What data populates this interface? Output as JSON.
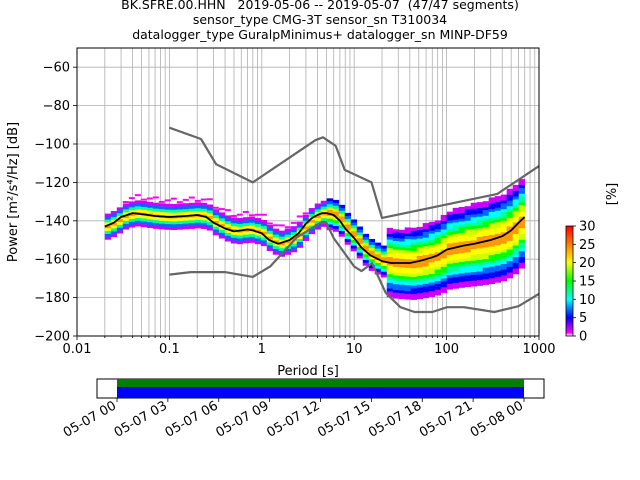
{
  "title_lines": [
    "BK.SFRE.00.HHN   2019-05-06 -- 2019-05-07  (47/47 segments)",
    "sensor_type CMG-3T sensor_sn T310034",
    "datalogger_type GuralpMinimus+ datalogger_sn MINP-DF59"
  ],
  "colors": {
    "model_curves": "#666666",
    "mean_curve": "#000000",
    "grid": "#b0b0b0",
    "timeline_green": "#008000",
    "timeline_blue": "#0000ff"
  },
  "chart_data": [
    {
      "type": "heatmap",
      "subtype": "probabilistic power spectral density",
      "xlabel": "Period [s]",
      "ylabel": "Power [m²/s⁴/Hz] [dB]",
      "xscale": "log",
      "xlim": [
        0.01,
        1000
      ],
      "ylim": [
        -200,
        -50
      ],
      "xticks": [
        0.01,
        0.1,
        1,
        10,
        100,
        1000
      ],
      "xtick_labels": [
        "0.01",
        "0.1",
        "1",
        "10",
        "100",
        "1000"
      ],
      "yticks": [
        -200,
        -180,
        -160,
        -140,
        -120,
        -100,
        -80,
        -60
      ],
      "grid": true,
      "colorbar": {
        "label": "[%]",
        "range": [
          0,
          30
        ],
        "ticks": [
          0,
          5,
          10,
          15,
          20,
          25,
          30
        ]
      },
      "noise_model_high": {
        "period": [
          0.1,
          0.22,
          0.32,
          0.8,
          3.8,
          4.6,
          6.3,
          7.9,
          15.4,
          20,
          354,
          1000
        ],
        "power": [
          -91.5,
          -97.4,
          -110.5,
          -120,
          -98,
          -96.5,
          -101,
          -113.5,
          -120,
          -138.5,
          -126,
          -111.5
        ]
      },
      "noise_model_low": {
        "period": [
          0.1,
          0.17,
          0.4,
          0.8,
          1.24,
          2.4,
          4.3,
          5,
          6,
          10,
          12,
          15.6,
          21.9,
          31.6,
          45,
          70,
          101,
          154,
          328,
          600,
          1000
        ],
        "power": [
          -168,
          -166.7,
          -166.7,
          -169.2,
          -163.7,
          -148.6,
          -141.1,
          -141.1,
          -149,
          -163.8,
          -166.2,
          -162.1,
          -177.5,
          -185,
          -187.5,
          -187.5,
          -185,
          -185,
          -187.5,
          -184.5,
          -178
        ]
      },
      "mean_curve": {
        "period": [
          0.02,
          0.025,
          0.03,
          0.04,
          0.05,
          0.07,
          0.1,
          0.15,
          0.2,
          0.25,
          0.3,
          0.4,
          0.5,
          0.6,
          0.7,
          0.8,
          1,
          1.2,
          1.5,
          2,
          2.5,
          3,
          3.5,
          4,
          4.5,
          5,
          6,
          7,
          8,
          10,
          12,
          15,
          20,
          25,
          30,
          40,
          50,
          60,
          70,
          80,
          100,
          150,
          200,
          300,
          400,
          500,
          600,
          700
        ],
        "power": [
          -143,
          -141,
          -138,
          -136,
          -136.5,
          -137.5,
          -138,
          -137.5,
          -137,
          -138,
          -141,
          -144,
          -145.5,
          -145,
          -144.5,
          -145,
          -146.5,
          -150,
          -152,
          -150,
          -146.5,
          -141.5,
          -138.5,
          -137,
          -136,
          -136,
          -137,
          -140,
          -144,
          -149,
          -154,
          -158,
          -161,
          -162,
          -162,
          -162,
          -161,
          -160,
          -159,
          -158,
          -155,
          -153,
          -152,
          -150,
          -148,
          -145,
          -141,
          -138
        ]
      }
    },
    {
      "type": "bar",
      "subtype": "timeline of data coverage",
      "tick_labels": [
        "05-07 00",
        "05-07 03",
        "05-07 06",
        "05-07 09",
        "05-07 12",
        "05-07 15",
        "05-07 18",
        "05-07 21",
        "05-08 00"
      ]
    }
  ]
}
